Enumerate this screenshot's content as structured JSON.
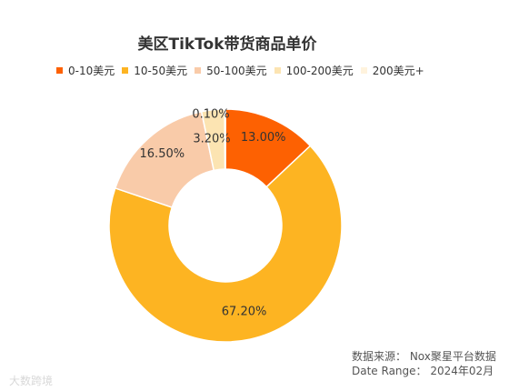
{
  "chart_data": {
    "type": "pie",
    "title": "美区TikTok带货商品单价",
    "categories": [
      "0-10美元",
      "10-50美元",
      "50-100美元",
      "100-200美元",
      "200美元+"
    ],
    "values": [
      13.0,
      67.2,
      16.5,
      3.2,
      0.1
    ],
    "data_labels": [
      "13.00%",
      "67.20%",
      "16.50%",
      "3.20%",
      "0.10%"
    ],
    "colors": [
      "#fd6102",
      "#fdb422",
      "#f9cba9",
      "#fce4b2",
      "#fff3dd"
    ],
    "donut": true,
    "legend_position": "top"
  },
  "source": {
    "line1": "数据来源： Nox聚星平台数据",
    "line2": "Date Range： 2024年02月"
  },
  "watermark": "大数跨境"
}
